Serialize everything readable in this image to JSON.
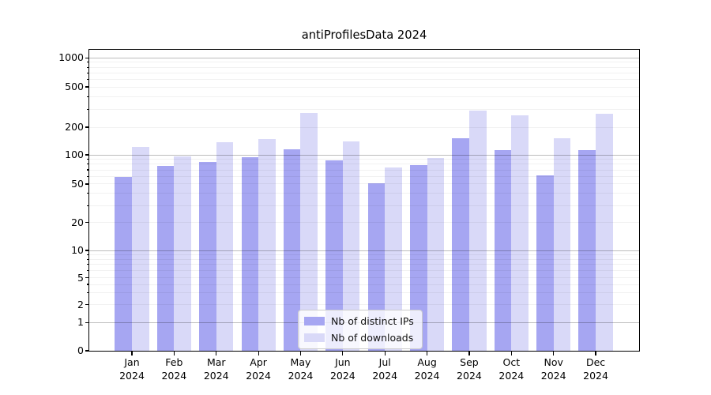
{
  "title": "antiProfilesData 2024",
  "chart_data": {
    "type": "bar",
    "title": "antiProfilesData 2024",
    "x_months": [
      "Jan",
      "Feb",
      "Mar",
      "Apr",
      "May",
      "Jun",
      "Jul",
      "Aug",
      "Sep",
      "Oct",
      "Nov",
      "Dec"
    ],
    "x_year": "2024",
    "series": [
      {
        "name": "Nb of distinct IPs",
        "color": "#a6a6f2",
        "values": [
          59,
          77,
          85,
          94,
          114,
          87,
          51,
          78,
          151,
          112,
          61,
          112
        ]
      },
      {
        "name": "Nb of downloads",
        "color": "#d9d9f8",
        "values": [
          121,
          96,
          138,
          148,
          276,
          139,
          74,
          93,
          292,
          264,
          151,
          271
        ]
      }
    ],
    "yscale": "symlog",
    "ylim": [
      0,
      1200
    ],
    "ytick_labels": [
      "0",
      "1",
      "2",
      "5",
      "10",
      "20",
      "50",
      "100",
      "200",
      "500",
      "1000"
    ],
    "ytick_values": [
      0,
      1,
      2,
      5,
      10,
      20,
      50,
      100,
      200,
      500,
      1000
    ],
    "y_major_gridlines": [
      1,
      10,
      100,
      1000
    ],
    "y_minor_gridlines": [
      2,
      3,
      4,
      5,
      6,
      7,
      8,
      9,
      20,
      30,
      40,
      50,
      60,
      70,
      80,
      90,
      200,
      300,
      400,
      500,
      600,
      700,
      800,
      900
    ],
    "grid": true,
    "legend_position": "lower center"
  },
  "legend": {
    "items": [
      {
        "label": "Nb of distinct IPs",
        "color": "#a6a6f2"
      },
      {
        "label": "Nb of downloads",
        "color": "#d9d9f8"
      }
    ]
  }
}
